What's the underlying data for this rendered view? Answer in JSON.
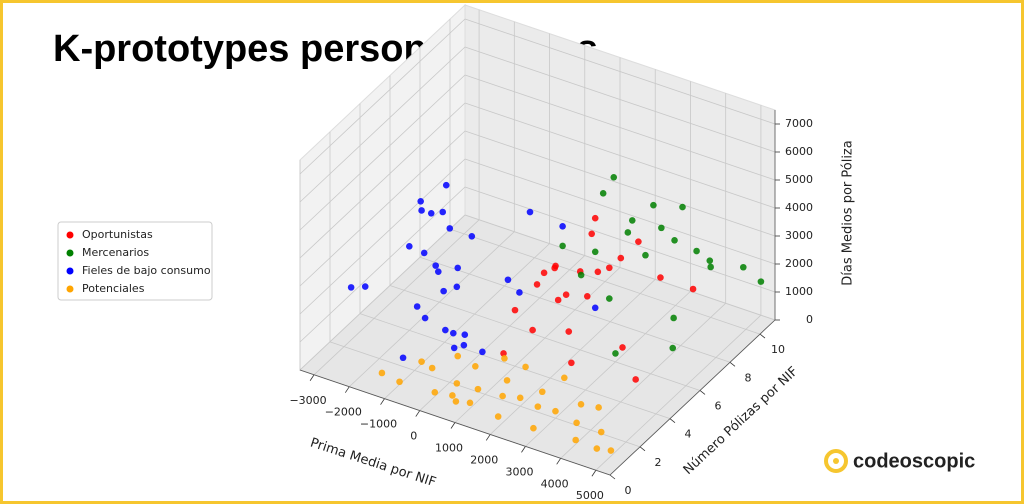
{
  "title": "K-prototypes personas físicas",
  "brand": "codeoscopic",
  "chart_data": {
    "type": "scatter3d",
    "xlabel": "Prima Media por NIF",
    "ylabel": "Número Pólizas por NIF",
    "zlabel": "Días Medios por Póliza",
    "xlim": [
      -3400,
      5400
    ],
    "ylim": [
      0,
      11
    ],
    "zlim": [
      0,
      7500
    ],
    "xticks": [
      {
        "value": -3000,
        "label": "−3000"
      },
      {
        "value": -2000,
        "label": "−2000"
      },
      {
        "value": -1000,
        "label": "−1000"
      },
      0,
      1000,
      2000,
      3000,
      4000,
      5000
    ],
    "yticks": [
      0,
      2,
      4,
      6,
      8,
      10
    ],
    "zticks": [
      0,
      1000,
      2000,
      3000,
      4000,
      5000,
      6000,
      7000
    ],
    "grid": true,
    "legend": "left",
    "series": [
      {
        "name": "Oportunistas",
        "color": "#ff0000",
        "x": [
          1000,
          1200,
          1400,
          1600,
          1800,
          2000,
          2200,
          2400,
          1500,
          1700,
          1900,
          2100,
          2500,
          1300,
          2300,
          2800,
          3000,
          3500,
          2600,
          1100,
          2000,
          4000,
          3200
        ],
        "y": [
          4,
          5,
          5,
          6,
          5,
          6,
          6,
          7,
          4,
          5,
          7,
          5,
          6,
          6,
          8,
          8,
          9,
          10,
          4,
          3,
          7,
          5,
          6
        ],
        "z": [
          2000,
          2500,
          3000,
          1800,
          2200,
          2800,
          2000,
          2600,
          1500,
          3300,
          3600,
          1200,
          3000,
          2700,
          2400,
          3200,
          1500,
          800,
          800,
          1000,
          4200,
          300,
          600
        ]
      },
      {
        "name": "Mercenarios",
        "color": "#008000",
        "x": [
          1500,
          2000,
          2500,
          3000,
          2200,
          2800,
          3200,
          1800,
          2600,
          3400,
          3600,
          4000,
          4500,
          5000,
          3800,
          4200,
          3000,
          2400,
          1600,
          2100,
          4400
        ],
        "y": [
          6,
          7,
          8,
          8,
          9,
          9,
          10,
          8,
          10,
          9,
          10,
          10,
          11,
          11,
          8,
          7,
          6,
          7,
          7,
          8,
          9
        ],
        "z": [
          3500,
          3000,
          3400,
          2800,
          3200,
          4000,
          3600,
          4500,
          2600,
          3000,
          2200,
          1800,
          1500,
          1200,
          900,
          500,
          300,
          1500,
          2000,
          5200,
          2700
        ]
      },
      {
        "name": "Fieles de bajo consumo",
        "color": "#0000ff",
        "x": [
          -900,
          -700,
          -500,
          -400,
          -300,
          -200,
          -100,
          0,
          100,
          200,
          300,
          400,
          -600,
          -200,
          0,
          200,
          -800,
          500,
          800,
          1000,
          1500,
          -400,
          -100,
          -2800,
          -2400,
          -2000,
          2000,
          700,
          -300,
          100
        ],
        "y": [
          1,
          2,
          1,
          2,
          1,
          2,
          1,
          2,
          1,
          2,
          1,
          2,
          3,
          3,
          3,
          3,
          2,
          3,
          4,
          5,
          6,
          1,
          2,
          2,
          2,
          4,
          7,
          5,
          3,
          2
        ],
        "z": [
          1000,
          2000,
          3000,
          4000,
          5000,
          6000,
          6500,
          5500,
          4500,
          3500,
          2500,
          1500,
          2500,
          3500,
          1200,
          4800,
          5800,
          800,
          3000,
          5000,
          4200,
          6800,
          7000,
          2200,
          2400,
          3000,
          1000,
          2000,
          600,
          1800
        ]
      },
      {
        "name": "Potenciales",
        "color": "#ffa500",
        "x": [
          -1500,
          -1000,
          -500,
          0,
          200,
          500,
          800,
          1000,
          1200,
          1500,
          1800,
          2000,
          2200,
          2500,
          2800,
          3000,
          3300,
          3600,
          4000,
          4300,
          4600,
          5000,
          -200,
          300,
          700,
          1300,
          -800,
          2400,
          3800,
          600
        ],
        "y": [
          1,
          1,
          2,
          1,
          2,
          1,
          2,
          1,
          3,
          2,
          1,
          2,
          3,
          2,
          1,
          2,
          3,
          2,
          1,
          2,
          1,
          1,
          3,
          3,
          4,
          4,
          2,
          4,
          3,
          1
        ],
        "z": [
          200,
          100,
          300,
          150,
          50,
          250,
          100,
          200,
          80,
          150,
          50,
          300,
          100,
          200,
          60,
          250,
          120,
          90,
          150,
          60,
          100,
          200,
          350,
          200,
          150,
          100,
          400,
          180,
          220,
          80
        ]
      }
    ]
  }
}
